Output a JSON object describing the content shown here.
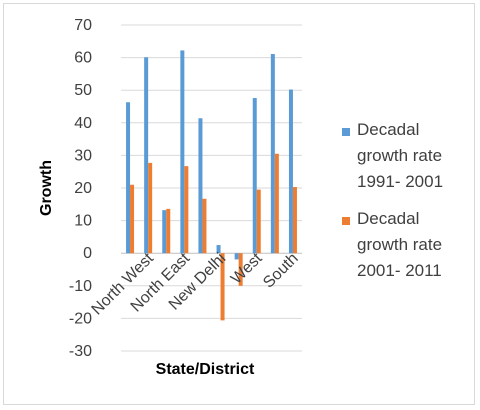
{
  "chart_data": {
    "type": "bar",
    "title": "",
    "xlabel": "State/District",
    "ylabel": "Growth",
    "ylim": [
      -30,
      70
    ],
    "ytick_step": 10,
    "grid": true,
    "legend_position": "right",
    "x_tick_labels": [
      "North West",
      "North East",
      "New Delhi",
      "West",
      "South"
    ],
    "categories": [
      "",
      "North West",
      "",
      "North East",
      "",
      "New Delhi",
      "",
      "West",
      "",
      "South"
    ],
    "series": [
      {
        "name": "Decadal growth rate 1991- 2001",
        "legend_lines": [
          "Decadal",
          "growth rate",
          "1991- 2001"
        ],
        "color": "#5b9bd5",
        "values": [
          46.3,
          60.1,
          13.2,
          62.2,
          41.4,
          2.5,
          -1.9,
          47.6,
          61.1,
          50.2
        ]
      },
      {
        "name": "Decadal growth rate 2001- 2011",
        "legend_lines": [
          "Decadal",
          "growth rate",
          "2001- 2011"
        ],
        "color": "#ed7d31",
        "values": [
          21.0,
          27.7,
          13.6,
          26.7,
          16.7,
          -20.6,
          -10.0,
          19.5,
          30.5,
          20.3
        ]
      }
    ]
  }
}
